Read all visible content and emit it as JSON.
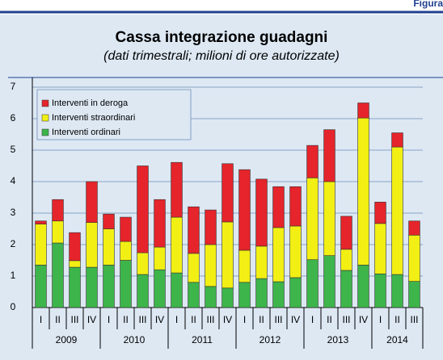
{
  "header": "Figura",
  "chart_data": {
    "type": "stacked_bar",
    "title": "Cassa integrazione guadagni",
    "subtitle": "(dati trimestrali; milioni di ore autorizzate)",
    "categories": [
      "I",
      "II",
      "III",
      "IV",
      "I",
      "II",
      "III",
      "IV",
      "I",
      "II",
      "III",
      "IV",
      "I",
      "II",
      "III",
      "IV",
      "I",
      "II",
      "III",
      "IV",
      "I",
      "II",
      "III"
    ],
    "years": [
      {
        "label": "2009",
        "span": 4
      },
      {
        "label": "2010",
        "span": 4
      },
      {
        "label": "2011",
        "span": 4
      },
      {
        "label": "2012",
        "span": 4
      },
      {
        "label": "2013",
        "span": 4
      },
      {
        "label": "2014",
        "span": 3
      }
    ],
    "series": [
      {
        "name": "Interventi ordinari",
        "color": "#3db54a",
        "values": [
          1.35,
          2.05,
          1.28,
          1.28,
          1.35,
          1.5,
          1.05,
          1.2,
          1.1,
          0.8,
          0.67,
          0.62,
          0.8,
          0.92,
          0.82,
          0.95,
          1.52,
          1.65,
          1.18,
          1.35,
          1.07,
          1.05,
          0.83
        ]
      },
      {
        "name": "Interventi straordinari",
        "color": "#f2ef14",
        "values": [
          1.3,
          0.7,
          0.21,
          1.42,
          1.15,
          0.6,
          0.69,
          0.72,
          1.77,
          0.92,
          1.33,
          2.1,
          1.02,
          1.03,
          1.72,
          1.64,
          2.6,
          2.35,
          0.67,
          4.67,
          1.6,
          4.05,
          1.47
        ]
      },
      {
        "name": "Interventi in deroga",
        "color": "#e5242b",
        "values": [
          0.1,
          0.68,
          0.89,
          1.3,
          0.47,
          0.77,
          2.76,
          1.51,
          1.74,
          1.48,
          1.1,
          1.85,
          2.56,
          2.13,
          1.3,
          1.25,
          1.03,
          1.65,
          1.05,
          0.48,
          0.68,
          0.45,
          0.45
        ]
      }
    ],
    "ylim": [
      0,
      7
    ],
    "yticks": [
      0,
      1,
      2,
      3,
      4,
      5,
      6,
      7
    ],
    "grid": true,
    "legend": "top-left"
  }
}
